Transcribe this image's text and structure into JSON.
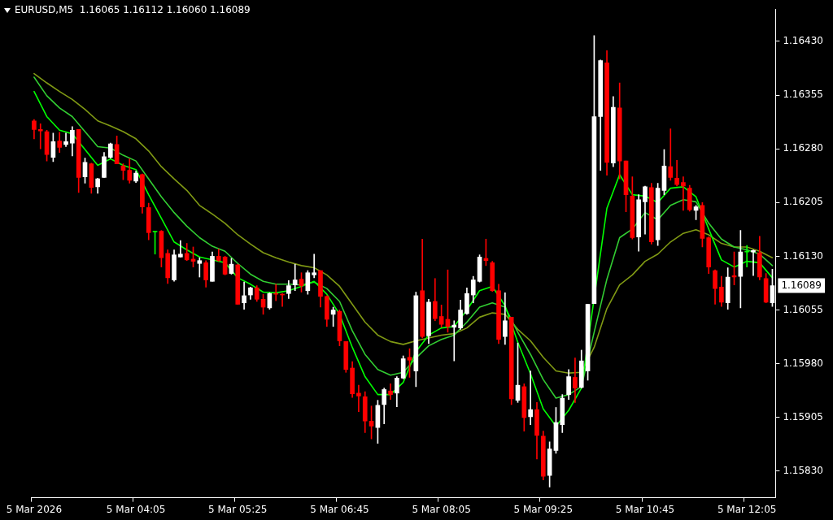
{
  "chart_data": {
    "type": "candlestick",
    "title": "EURUSD,M5  1.16065 1.16112 1.16060 1.16089",
    "categories": [
      "5 Mar 2026",
      null,
      null,
      null,
      null,
      null,
      null,
      null,
      null,
      null,
      null,
      null,
      null,
      null,
      null,
      null,
      "5 Mar 04:05",
      null,
      null,
      null,
      null,
      null,
      null,
      null,
      null,
      null,
      null,
      null,
      null,
      null,
      null,
      null,
      "5 Mar 05:25",
      null,
      null,
      null,
      null,
      null,
      null,
      null,
      null,
      null,
      null,
      null,
      null,
      null,
      null,
      null,
      "5 Mar 06:45",
      null,
      null,
      null,
      null,
      null,
      null,
      null,
      null,
      null,
      null,
      null,
      null,
      null,
      null,
      null,
      "5 Mar 08:05",
      null,
      null,
      null,
      null,
      null,
      null,
      null,
      null,
      null,
      null,
      null,
      null,
      null,
      null,
      null,
      "5 Mar 09:25",
      null,
      null,
      null,
      null,
      null,
      null,
      null,
      null,
      null,
      null,
      null,
      null,
      null,
      null,
      null,
      "5 Mar 10:45",
      null,
      null,
      null,
      null,
      null,
      null,
      null,
      null,
      null,
      null,
      null,
      null,
      null,
      null,
      null,
      "5 Mar 12:05",
      null,
      null,
      null,
      null
    ],
    "ohlc": [
      [
        1.16319,
        1.16321,
        1.16294,
        1.16307
      ],
      [
        1.16307,
        1.16315,
        1.1628,
        1.16305
      ],
      [
        1.16304,
        1.16306,
        1.16263,
        1.16272
      ],
      [
        1.16268,
        1.16302,
        1.16262,
        1.1629
      ],
      [
        1.16291,
        1.16303,
        1.16275,
        1.16282
      ],
      [
        1.16286,
        1.16302,
        1.16283,
        1.1629
      ],
      [
        1.16288,
        1.16311,
        1.1627,
        1.16306
      ],
      [
        1.16307,
        1.16307,
        1.16219,
        1.1624
      ],
      [
        1.16241,
        1.16267,
        1.16232,
        1.16261
      ],
      [
        1.16259,
        1.1626,
        1.16218,
        1.16226
      ],
      [
        1.16227,
        1.16239,
        1.16218,
        1.16238
      ],
      [
        1.1624,
        1.16275,
        1.1624,
        1.16269
      ],
      [
        1.16268,
        1.16288,
        1.16267,
        1.16287
      ],
      [
        1.16286,
        1.16298,
        1.16259,
        1.16259
      ],
      [
        1.16256,
        1.16259,
        1.16237,
        1.1625
      ],
      [
        1.1625,
        1.16266,
        1.16232,
        1.16236
      ],
      [
        1.16235,
        1.16249,
        1.16233,
        1.16246
      ],
      [
        1.16244,
        1.16245,
        1.1619,
        1.16199
      ],
      [
        1.16198,
        1.16204,
        1.16153,
        1.16163
      ],
      [
        1.16164,
        1.16165,
        1.16133,
        1.16164
      ],
      [
        1.16165,
        1.16166,
        1.16115,
        1.16128
      ],
      [
        1.16134,
        1.16139,
        1.16092,
        1.161
      ],
      [
        1.16097,
        1.16139,
        1.16095,
        1.16132
      ],
      [
        1.16129,
        1.16152,
        1.16129,
        1.16133
      ],
      [
        1.16134,
        1.16148,
        1.16124,
        1.16125
      ],
      [
        1.16126,
        1.16143,
        1.16115,
        1.16123
      ],
      [
        1.1612,
        1.16128,
        1.16101,
        1.16124
      ],
      [
        1.16121,
        1.16124,
        1.16087,
        1.16097
      ],
      [
        1.16095,
        1.16136,
        1.16095,
        1.1613
      ],
      [
        1.1613,
        1.1614,
        1.16123,
        1.16124
      ],
      [
        1.16129,
        1.1613,
        1.16104,
        1.16105
      ],
      [
        1.16106,
        1.16127,
        1.16105,
        1.16119
      ],
      [
        1.16118,
        1.16119,
        1.16063,
        1.16063
      ],
      [
        1.16065,
        1.16094,
        1.16056,
        1.16075
      ],
      [
        1.16076,
        1.16087,
        1.1607,
        1.16086
      ],
      [
        1.16086,
        1.16089,
        1.16067,
        1.1607
      ],
      [
        1.1607,
        1.16077,
        1.16049,
        1.16059
      ],
      [
        1.16058,
        1.16079,
        1.16056,
        1.16078
      ],
      [
        1.16078,
        1.16091,
        1.16068,
        1.16077
      ],
      [
        1.16077,
        1.16078,
        1.1606,
        1.16076
      ],
      [
        1.16078,
        1.16096,
        1.16071,
        1.16089
      ],
      [
        1.1609,
        1.16119,
        1.16082,
        1.16097
      ],
      [
        1.16098,
        1.16107,
        1.1608,
        1.16089
      ],
      [
        1.16082,
        1.1611,
        1.16077,
        1.16107
      ],
      [
        1.16104,
        1.16133,
        1.161,
        1.16107
      ],
      [
        1.1611,
        1.1611,
        1.16059,
        1.16074
      ],
      [
        1.16074,
        1.16075,
        1.16032,
        1.16042
      ],
      [
        1.16049,
        1.16059,
        1.16032,
        1.16055
      ],
      [
        1.16053,
        1.16055,
        1.16005,
        1.16012
      ],
      [
        1.16011,
        1.16011,
        1.15968,
        1.15972
      ],
      [
        1.15974,
        1.15983,
        1.15933,
        1.15938
      ],
      [
        1.15939,
        1.1595,
        1.15913,
        1.15935
      ],
      [
        1.15934,
        1.15941,
        1.15884,
        1.159
      ],
      [
        1.159,
        1.15921,
        1.15875,
        1.15893
      ],
      [
        1.15891,
        1.15929,
        1.15869,
        1.15922
      ],
      [
        1.15923,
        1.15946,
        1.15896,
        1.15944
      ],
      [
        1.15942,
        1.15952,
        1.1593,
        1.15937
      ],
      [
        1.15939,
        1.15962,
        1.1592,
        1.1596
      ],
      [
        1.1596,
        1.15991,
        1.15959,
        1.15987
      ],
      [
        1.15989,
        1.16001,
        1.15961,
        1.15985
      ],
      [
        1.1597,
        1.1608,
        1.15948,
        1.16075
      ],
      [
        1.16082,
        1.16154,
        1.16016,
        1.16018
      ],
      [
        1.16019,
        1.1607,
        1.16008,
        1.16066
      ],
      [
        1.16067,
        1.16099,
        1.1604,
        1.16043
      ],
      [
        1.16046,
        1.16062,
        1.16031,
        1.16035
      ],
      [
        1.16042,
        1.16111,
        1.16024,
        1.16032
      ],
      [
        1.16031,
        1.1604,
        1.15984,
        1.16034
      ],
      [
        1.1603,
        1.16069,
        1.16028,
        1.16055
      ],
      [
        1.1605,
        1.16086,
        1.16049,
        1.16078
      ],
      [
        1.16076,
        1.16102,
        1.16065,
        1.16097
      ],
      [
        1.16095,
        1.16132,
        1.16094,
        1.16129
      ],
      [
        1.16127,
        1.16154,
        1.16117,
        1.16124
      ],
      [
        1.16121,
        1.16123,
        1.16081,
        1.16082
      ],
      [
        1.16082,
        1.16091,
        1.16008,
        1.16014
      ],
      [
        1.16018,
        1.16079,
        1.16007,
        1.1604
      ],
      [
        1.16045,
        1.16045,
        1.15923,
        1.15931
      ],
      [
        1.15929,
        1.16009,
        1.15926,
        1.1595
      ],
      [
        1.15948,
        1.15952,
        1.15886,
        1.15905
      ],
      [
        1.15906,
        1.1597,
        1.15895,
        1.15916
      ],
      [
        1.15916,
        1.15926,
        1.15847,
        1.1588
      ],
      [
        1.15879,
        1.15886,
        1.15818,
        1.15823
      ],
      [
        1.15824,
        1.15871,
        1.15808,
        1.15861
      ],
      [
        1.15859,
        1.15919,
        1.15855,
        1.15898
      ],
      [
        1.15895,
        1.15937,
        1.15884,
        1.15932
      ],
      [
        1.15937,
        1.15972,
        1.1593,
        1.15962
      ],
      [
        1.15961,
        1.15988,
        1.15926,
        1.15946
      ],
      [
        1.15947,
        1.15999,
        1.15946,
        1.15984
      ],
      [
        1.1597,
        1.16063,
        1.15957,
        1.16063
      ],
      [
        1.16064,
        1.16438,
        1.16064,
        1.16325
      ],
      [
        1.16325,
        1.16404,
        1.1625,
        1.16403
      ],
      [
        1.164,
        1.16417,
        1.16243,
        1.16261
      ],
      [
        1.1626,
        1.16353,
        1.16255,
        1.16338
      ],
      [
        1.16337,
        1.16372,
        1.16238,
        1.16263
      ],
      [
        1.16263,
        1.16263,
        1.16192,
        1.16216
      ],
      [
        1.16214,
        1.16241,
        1.16154,
        1.16156
      ],
      [
        1.16157,
        1.16216,
        1.16137,
        1.16209
      ],
      [
        1.16206,
        1.16228,
        1.16161,
        1.16227
      ],
      [
        1.16226,
        1.16232,
        1.16147,
        1.1615
      ],
      [
        1.16153,
        1.16232,
        1.16145,
        1.16225
      ],
      [
        1.16222,
        1.16279,
        1.16216,
        1.16256
      ],
      [
        1.16255,
        1.16308,
        1.16236,
        1.1624
      ],
      [
        1.16239,
        1.16264,
        1.16228,
        1.1623
      ],
      [
        1.16233,
        1.16241,
        1.16194,
        1.16228
      ],
      [
        1.16225,
        1.16229,
        1.16193,
        1.16195
      ],
      [
        1.16194,
        1.16201,
        1.16181,
        1.16199
      ],
      [
        1.16201,
        1.16205,
        1.16143,
        1.16155
      ],
      [
        1.16156,
        1.16157,
        1.16106,
        1.16115
      ],
      [
        1.1611,
        1.16111,
        1.16063,
        1.16085
      ],
      [
        1.16087,
        1.16102,
        1.1606,
        1.16066
      ],
      [
        1.16065,
        1.16114,
        1.16056,
        1.16101
      ],
      [
        1.16103,
        1.16136,
        1.1609,
        1.16101
      ],
      [
        1.16102,
        1.16166,
        1.16058,
        1.16136
      ],
      [
        1.16136,
        1.16145,
        1.16115,
        1.16136
      ],
      [
        1.16136,
        1.16139,
        1.16103,
        1.16138
      ],
      [
        1.16135,
        1.16158,
        1.16097,
        1.16101
      ],
      [
        1.16099,
        1.16106,
        1.16065,
        1.16066
      ],
      [
        1.16065,
        1.16112,
        1.1606,
        1.16089
      ]
    ],
    "colors": [
      "#ff0000",
      "#ff0000",
      "#ff0000",
      "#ffffff",
      "#ff0000",
      "#ffffff",
      "#ffffff",
      "#ff0000",
      "#ffffff",
      "#ff0000",
      "#ffffff",
      "#ffffff",
      "#ffffff",
      "#ff0000",
      "#ff0000",
      "#ff0000",
      "#ffffff",
      "#ff0000",
      "#ff0000",
      "#00ff00",
      "#ff0000",
      "#ff0000",
      "#ffffff",
      "#ffffff",
      "#ff0000",
      "#ff0000",
      "#ffffff",
      "#ff0000",
      "#ffffff",
      "#ff0000",
      "#ff0000",
      "#ffffff",
      "#ff0000",
      "#ffffff",
      "#ffffff",
      "#ff0000",
      "#ff0000",
      "#ffffff",
      "#ff0000",
      "#ff0000",
      "#ffffff",
      "#ffffff",
      "#ff0000",
      "#ffffff",
      "#ffffff",
      "#ff0000",
      "#ff0000",
      "#ffffff",
      "#ff0000",
      "#ff0000",
      "#ff0000",
      "#ff0000",
      "#ff0000",
      "#ff0000",
      "#ffffff",
      "#ffffff",
      "#ff0000",
      "#ffffff",
      "#ffffff",
      "#ff0000",
      "#ffffff",
      "#ff0000",
      "#ffffff",
      "#ff0000",
      "#ff0000",
      "#ff0000",
      "#ffffff",
      "#ffffff",
      "#ffffff",
      "#ffffff",
      "#ffffff",
      "#ff0000",
      "#ff0000",
      "#ff0000",
      "#ffffff",
      "#ff0000",
      "#ffffff",
      "#ff0000",
      "#ffffff",
      "#ff0000",
      "#ff0000",
      "#ffffff",
      "#ffffff",
      "#ffffff",
      "#ffffff",
      "#ff0000",
      "#ffffff",
      "#ffffff",
      "#ffffff",
      "#ffffff",
      "#ff0000",
      "#ffffff",
      "#ff0000",
      "#ff0000",
      "#ff0000",
      "#ffffff",
      "#ffffff",
      "#ff0000",
      "#ffffff",
      "#ffffff",
      "#ff0000",
      "#ff0000",
      "#ff0000",
      "#ff0000",
      "#ffffff",
      "#ff0000",
      "#ff0000",
      "#ff0000",
      "#ff0000",
      "#ffffff",
      "#ff0000",
      "#ffffff",
      "#00ff00",
      "#ffffff",
      "#ff0000",
      "#ff0000",
      "#ffffff"
    ],
    "series": [
      {
        "type": "line",
        "color": "#00ff00",
        "values": [
          1.1636,
          null,
          1.16325,
          null,
          1.16306,
          null,
          1.16301,
          null,
          1.16279,
          null,
          1.16257,
          null,
          1.16266,
          null,
          1.16257,
          null,
          1.16251,
          null,
          1.16216,
          null,
          1.16183,
          null,
          1.1615,
          null,
          1.16139,
          null,
          1.16129,
          null,
          1.16125,
          null,
          1.16121,
          null,
          1.161,
          null,
          1.16091,
          null,
          1.1608,
          null,
          1.16079,
          null,
          1.16082,
          null,
          1.16088,
          null,
          1.16095,
          null,
          1.16077,
          null,
          1.16049,
          null,
          1.16003,
          null,
          1.15962,
          null,
          1.15937,
          null,
          1.15937,
          null,
          1.15954,
          null,
          1.15997,
          null,
          1.1602,
          null,
          1.1603,
          null,
          1.16032,
          null,
          1.16055,
          null,
          1.16082,
          null,
          1.16088,
          null,
          1.16061,
          null,
          1.1601,
          null,
          1.15966,
          null,
          1.15917,
          null,
          1.15893,
          null,
          1.15915,
          null,
          1.15946,
          null,
          null,
          null,
          1.16197,
          null,
          1.16244,
          null,
          1.16216,
          null,
          1.16214,
          null,
          1.16205,
          null,
          1.16225,
          null,
          1.16227,
          null,
          1.16213,
          null,
          1.16168,
          null,
          1.16125,
          null,
          1.16115,
          null,
          1.16123,
          null,
          1.16121,
          null,
          1.161
        ]
      },
      {
        "type": "line",
        "color": "#32cd32",
        "values": [
          1.1638,
          null,
          1.16354,
          null,
          1.16337,
          null,
          1.16325,
          null,
          1.16304,
          null,
          1.16283,
          null,
          1.16281,
          null,
          1.16271,
          null,
          1.16263,
          null,
          1.16238,
          null,
          1.16213,
          null,
          1.16191,
          null,
          1.16172,
          null,
          1.16156,
          null,
          1.16144,
          null,
          1.16137,
          null,
          1.1612,
          null,
          1.16105,
          null,
          1.16095,
          null,
          1.16091,
          null,
          1.16091,
          null,
          1.1609,
          null,
          1.16094,
          null,
          1.16085,
          null,
          1.16067,
          null,
          1.16026,
          null,
          1.15993,
          null,
          1.15972,
          null,
          1.15964,
          null,
          1.15968,
          null,
          1.15988,
          null,
          1.16005,
          null,
          1.16014,
          null,
          1.1602,
          null,
          1.16038,
          null,
          1.16059,
          null,
          1.16065,
          null,
          1.16059,
          null,
          1.16024,
          null,
          1.15993,
          null,
          1.15958,
          null,
          1.15932,
          null,
          1.15937,
          null,
          1.15948,
          null,
          1.16024,
          null,
          1.16098,
          null,
          1.16156,
          null,
          1.16168,
          null,
          1.16191,
          null,
          1.16181,
          null,
          1.16201,
          null,
          1.16209,
          null,
          1.16206,
          null,
          1.16176,
          null,
          1.16154,
          null,
          1.16143,
          null,
          1.16139,
          null,
          1.16133,
          null,
          1.16117
        ]
      },
      {
        "type": "line",
        "color": "#809a14",
        "values": [
          1.16385,
          null,
          1.16372,
          null,
          1.1636,
          null,
          1.16349,
          null,
          1.16335,
          null,
          1.16319,
          null,
          1.16312,
          null,
          1.16304,
          null,
          1.16294,
          null,
          1.16277,
          null,
          1.16255,
          null,
          1.16238,
          null,
          1.16222,
          null,
          1.16201,
          null,
          1.16189,
          null,
          1.16176,
          null,
          1.1616,
          null,
          1.16147,
          null,
          1.16135,
          null,
          1.16128,
          null,
          1.16122,
          null,
          1.16117,
          null,
          1.16114,
          null,
          1.16104,
          null,
          1.16088,
          null,
          1.16063,
          null,
          1.16038,
          null,
          1.1602,
          null,
          1.16011,
          null,
          1.16007,
          null,
          1.16012,
          null,
          1.16016,
          null,
          1.1602,
          null,
          1.16022,
          null,
          1.1603,
          null,
          1.16045,
          null,
          1.16051,
          null,
          1.16049,
          null,
          1.16028,
          null,
          1.16012,
          null,
          1.15989,
          null,
          1.1597,
          null,
          1.15967,
          null,
          1.15968,
          null,
          1.16003,
          null,
          1.16057,
          null,
          1.1609,
          null,
          1.16104,
          null,
          1.16123,
          null,
          1.16133,
          null,
          1.1615,
          null,
          1.16162,
          null,
          1.16167,
          null,
          1.1616,
          null,
          1.16148,
          null,
          1.16143,
          null,
          1.16143,
          null,
          1.16137,
          null,
          1.16128
        ]
      }
    ],
    "ylim": [
      1.15793,
      1.16475
    ],
    "yticks": [
      {
        "value": 1.1583,
        "label": "1.15830"
      },
      {
        "value": 1.15905,
        "label": "1.15905"
      },
      {
        "value": 1.1598,
        "label": "1.15980"
      },
      {
        "value": 1.16055,
        "label": "1.16055"
      },
      {
        "value": 1.1613,
        "label": "1.16130"
      },
      {
        "value": 1.16205,
        "label": "1.16205"
      },
      {
        "value": 1.1628,
        "label": "1.16280"
      },
      {
        "value": 1.16355,
        "label": "1.16355"
      },
      {
        "value": 1.1643,
        "label": "1.16430"
      }
    ],
    "annotations": [
      "1.16089"
    ],
    "grid": false,
    "legend": false,
    "marker": "none",
    "line_style": "solid"
  }
}
